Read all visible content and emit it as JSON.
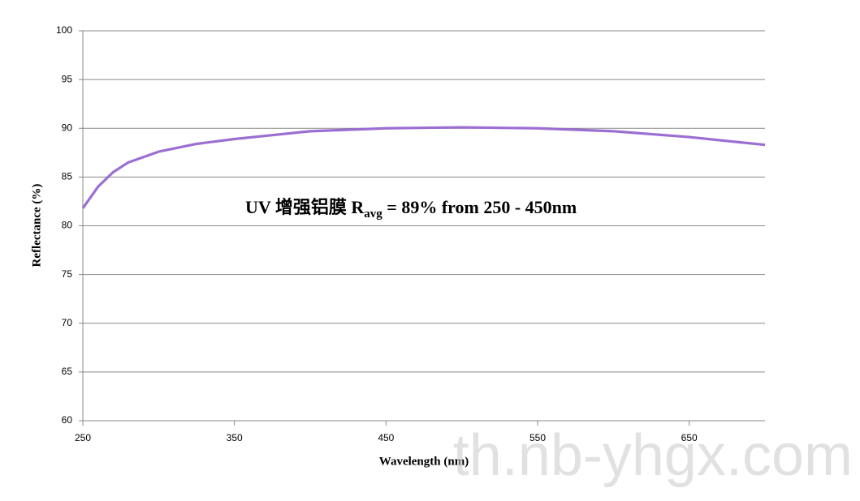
{
  "chart_data": {
    "type": "line",
    "annotation": {
      "text": "UV 增强铝膜 R",
      "subscript": "avg",
      "suffix": " = 89% from 250 - 450nm"
    },
    "x_label": "Wavelength (nm)",
    "y_label": "Reflectance (%)",
    "watermark": "th.nb-yhgx.com",
    "x": [
      250,
      260,
      270,
      280,
      300,
      325,
      350,
      375,
      400,
      450,
      500,
      550,
      600,
      650,
      700
    ],
    "series": [
      {
        "name": "Reflectance",
        "color": "#9b6fd2",
        "values": [
          81.8,
          84.0,
          85.5,
          86.5,
          87.6,
          88.4,
          88.9,
          89.3,
          89.7,
          90.0,
          90.1,
          90.0,
          89.7,
          89.1,
          88.3
        ]
      }
    ],
    "xlim": [
      250,
      700
    ],
    "xticks": [
      250,
      350,
      450,
      550,
      650
    ],
    "ylim": [
      60,
      100
    ],
    "yticks": [
      60,
      65,
      70,
      75,
      80,
      85,
      90,
      95,
      100
    ],
    "grid": true
  }
}
